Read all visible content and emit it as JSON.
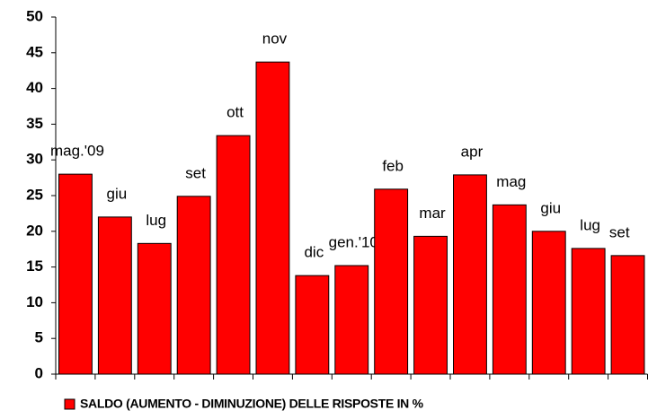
{
  "chart_data": {
    "type": "bar",
    "categories": [
      "mag.'09",
      "giu",
      "lug",
      "set",
      "ott",
      "nov",
      "dic",
      "gen.'10",
      "feb",
      "mar",
      "apr",
      "mag",
      "giu",
      "lug",
      "set"
    ],
    "series": [
      {
        "name": "SALDO (AUMENTO - DIMINUZIONE) DELLE RISPOSTE IN %",
        "color": "#ff0000",
        "values": [
          28,
          22,
          18.3,
          24.9,
          33.4,
          43.7,
          13.8,
          15.2,
          25.9,
          19.3,
          27.9,
          23.7,
          20,
          17.6,
          16.6
        ]
      }
    ],
    "ylim": [
      0,
      50
    ],
    "yticks": [
      0,
      5,
      10,
      15,
      20,
      25,
      30,
      35,
      40,
      45,
      50
    ],
    "grid": false,
    "legend": "bottom"
  }
}
